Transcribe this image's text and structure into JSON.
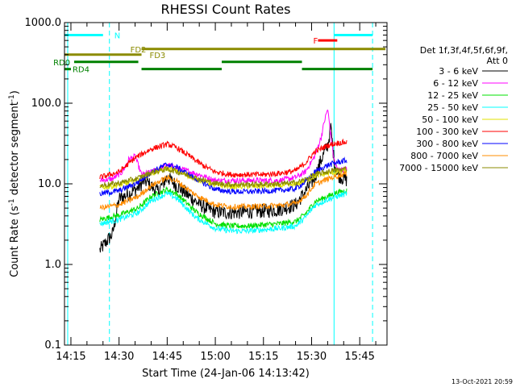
{
  "chart_data": {
    "type": "line",
    "title": "RHESSI Count Rates",
    "xlabel": "Start Time (24-Jan-06 14:13:42)",
    "ylabel": "Count Rate (s⁻¹ detector segment⁻¹)",
    "ylabel_parts": [
      "Count Rate (s",
      "-1",
      " detector segment",
      "-1",
      ")"
    ],
    "yscale": "log",
    "ylim": [
      0.1,
      1000
    ],
    "xlim": [
      "14:13:00",
      "15:53:30"
    ],
    "yticks": [
      {
        "value": 0.1,
        "label": "0.1"
      },
      {
        "value": 1,
        "label": "1.0"
      },
      {
        "value": 10,
        "label": "10.0"
      },
      {
        "value": 100,
        "label": "100.0"
      },
      {
        "value": 1000,
        "label": "1000.0"
      }
    ],
    "xticks": [
      {
        "time": "14:15",
        "label": "14:15"
      },
      {
        "time": "14:30",
        "label": "14:30"
      },
      {
        "time": "14:45",
        "label": "14:45"
      },
      {
        "time": "15:00",
        "label": "15:00"
      },
      {
        "time": "15:15",
        "label": "15:15"
      },
      {
        "time": "15:30",
        "label": "15:30"
      },
      {
        "time": "15:45",
        "label": "15:45"
      }
    ],
    "legend": {
      "placement": "right",
      "header": [
        "Det 1f,3f,4f,5f,6f,9f,",
        "Att 0"
      ]
    },
    "series": [
      {
        "name": "3 - 6 keV",
        "color": "#000000",
        "x": [
          "14:24",
          "14:26",
          "14:28",
          "14:30",
          "14:33",
          "14:36",
          "14:38",
          "14:42",
          "14:45",
          "14:48",
          "14:51",
          "14:54",
          "14:57",
          "15:00",
          "15:03",
          "15:06",
          "15:10",
          "15:15",
          "15:20",
          "15:25",
          "15:28",
          "15:31",
          "15:33",
          "15:35",
          "15:36",
          "15:37",
          "15:38",
          "15:41"
        ],
        "y": [
          1.5,
          1.9,
          2.4,
          6.5,
          7.5,
          9.0,
          11,
          8,
          12,
          9.5,
          7.5,
          6,
          5,
          4.5,
          4.4,
          4.4,
          4.5,
          4.6,
          4.8,
          5.5,
          8,
          12,
          20,
          30,
          50,
          20,
          13,
          11
        ]
      },
      {
        "name": "6 - 12 keV",
        "color": "#ff00ff",
        "x": [
          "14:24",
          "14:28",
          "14:31",
          "14:33",
          "14:35",
          "14:37",
          "14:40",
          "14:45",
          "14:50",
          "14:55",
          "15:00",
          "15:05",
          "15:10",
          "15:15",
          "15:20",
          "15:25",
          "15:28",
          "15:31",
          "15:33",
          "15:34",
          "15:35",
          "15:36",
          "15:37",
          "15:38",
          "15:41"
        ],
        "y": [
          11,
          11.5,
          14,
          20,
          22,
          13,
          14,
          17,
          15,
          13,
          11,
          11,
          11,
          11,
          11,
          12,
          14,
          22,
          38,
          60,
          85,
          40,
          20,
          15,
          15
        ]
      },
      {
        "name": "12 - 25 keV",
        "color": "#00e000",
        "x": [
          "14:24",
          "14:30",
          "14:36",
          "14:40",
          "14:45",
          "14:48",
          "14:54",
          "15:00",
          "15:05",
          "15:10",
          "15:15",
          "15:20",
          "15:25",
          "15:28",
          "15:31",
          "15:35",
          "15:38",
          "15:41"
        ],
        "y": [
          3.6,
          4.1,
          5.0,
          7.0,
          8.5,
          7.5,
          4.5,
          3.2,
          3.0,
          3.0,
          3.1,
          3.2,
          3.4,
          4.2,
          6.0,
          7.0,
          7.8,
          8.3
        ]
      },
      {
        "name": "25 - 50 keV",
        "color": "#00ffff",
        "x": [
          "14:24",
          "14:30",
          "14:36",
          "14:40",
          "14:45",
          "14:48",
          "14:54",
          "15:00",
          "15:05",
          "15:10",
          "15:15",
          "15:20",
          "15:25",
          "15:28",
          "15:31",
          "15:35",
          "15:38",
          "15:41"
        ],
        "y": [
          3.2,
          3.6,
          4.4,
          6.2,
          7.6,
          6.6,
          3.8,
          2.8,
          2.6,
          2.6,
          2.7,
          2.8,
          3.0,
          3.8,
          5.4,
          6.4,
          7.0,
          7.6
        ]
      },
      {
        "name": "50 - 100 keV",
        "color": "#e0e000",
        "x": [
          "14:24",
          "14:30",
          "14:36",
          "14:40",
          "14:45",
          "14:48",
          "14:54",
          "15:00",
          "15:05",
          "15:10",
          "15:15",
          "15:20",
          "15:25",
          "15:28",
          "15:31",
          "15:35",
          "15:38",
          "15:41"
        ],
        "y": [
          9.0,
          9.6,
          11.0,
          13.5,
          15.5,
          14.5,
          11.5,
          9.6,
          9.3,
          9.3,
          9.4,
          9.5,
          9.8,
          10.8,
          12.5,
          13.5,
          14.0,
          14.5
        ]
      },
      {
        "name": "100 - 300 keV",
        "color": "#ff0000",
        "x": [
          "14:24",
          "14:30",
          "14:35",
          "14:40",
          "14:45",
          "14:48",
          "14:52",
          "14:56",
          "15:00",
          "15:05",
          "15:10",
          "15:15",
          "15:20",
          "15:25",
          "15:28",
          "15:31",
          "15:35",
          "15:38",
          "15:41"
        ],
        "y": [
          12,
          14,
          21,
          27,
          31,
          28,
          22,
          17,
          14,
          13,
          13,
          13,
          13.5,
          14.5,
          18,
          25,
          30,
          32,
          33
        ]
      },
      {
        "name": "300 - 800 keV",
        "color": "#0000ff",
        "x": [
          "14:24",
          "14:30",
          "14:36",
          "14:40",
          "14:45",
          "14:48",
          "14:54",
          "15:00",
          "15:05",
          "15:10",
          "15:15",
          "15:20",
          "15:25",
          "15:28",
          "15:31",
          "15:35",
          "15:38",
          "15:41"
        ],
        "y": [
          7.5,
          8.2,
          10.5,
          14,
          17.5,
          16,
          11.5,
          8.5,
          8.0,
          8.0,
          8.1,
          8.3,
          8.7,
          10.5,
          14.0,
          17.0,
          18.5,
          19.5
        ]
      },
      {
        "name": "800 - 7000 keV",
        "color": "#ff8c00",
        "x": [
          "14:24",
          "14:30",
          "14:36",
          "14:40",
          "14:45",
          "14:48",
          "14:54",
          "15:00",
          "15:05",
          "15:10",
          "15:15",
          "15:20",
          "15:25",
          "15:28",
          "15:31",
          "15:35",
          "15:38",
          "15:41"
        ],
        "y": [
          5.0,
          5.5,
          7.0,
          9.5,
          12.0,
          10.8,
          7.2,
          5.5,
          5.2,
          5.2,
          5.3,
          5.4,
          5.7,
          7.0,
          9.8,
          11.5,
          12.5,
          13.5
        ]
      },
      {
        "name": "7000 - 15000 keV",
        "color": "#8b8b00",
        "x": [
          "14:24",
          "14:30",
          "14:36",
          "14:40",
          "14:45",
          "14:48",
          "14:54",
          "15:00",
          "15:05",
          "15:10",
          "15:15",
          "15:20",
          "15:25",
          "15:28",
          "15:31",
          "15:35",
          "15:38",
          "15:41"
        ],
        "y": [
          9.5,
          10.2,
          11.8,
          13.8,
          15.2,
          14.2,
          11.8,
          10.1,
          9.8,
          9.8,
          9.9,
          10.0,
          10.3,
          11.3,
          13.0,
          14.2,
          14.8,
          15.4
        ]
      }
    ],
    "flags": [
      {
        "label": "N",
        "color": "#00ffff",
        "level": 700,
        "label_at": "14:28",
        "segments": [
          [
            "14:13",
            "14:25"
          ],
          [
            "15:37",
            "15:49"
          ]
        ]
      },
      {
        "label": "F",
        "color": "#ff0000",
        "level": 600,
        "label_at": "15:30",
        "segments": [
          [
            "15:32",
            "15:38"
          ]
        ]
      },
      {
        "label": "FD2",
        "color": "#8b8b00",
        "level": 470,
        "label_at": "14:33",
        "segments": [
          [
            "14:37",
            "15:53"
          ]
        ]
      },
      {
        "label": "FD3",
        "color": "#8b8b00",
        "level": 400,
        "label_at": "14:39",
        "segments": [
          [
            "14:13",
            "14:37"
          ]
        ]
      },
      {
        "label": "RD0",
        "color": "#008000",
        "level": 325,
        "label_at": "14:09",
        "segments": [
          [
            "14:16",
            "14:36"
          ],
          [
            "15:02",
            "15:27"
          ]
        ]
      },
      {
        "label": "RD4",
        "color": "#008000",
        "level": 265,
        "label_at": "14:15",
        "segments": [
          [
            "14:13",
            "14:15"
          ],
          [
            "14:37",
            "15:02"
          ],
          [
            "15:27",
            "15:49"
          ]
        ]
      }
    ],
    "vlines": [
      {
        "time": "14:14",
        "color": "#00ffff",
        "style": "solid"
      },
      {
        "time": "14:27",
        "color": "#00ffff",
        "style": "dashed"
      },
      {
        "time": "15:37",
        "color": "#00ffff",
        "style": "solid"
      },
      {
        "time": "15:49",
        "color": "#00ffff",
        "style": "dashed"
      }
    ],
    "grid": false,
    "timestamp": "13-Oct-2021 20:59"
  }
}
